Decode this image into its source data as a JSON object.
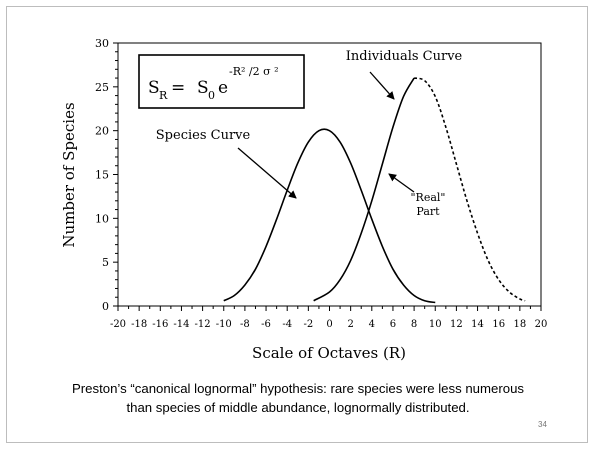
{
  "chart_data": {
    "type": "line",
    "title": "",
    "xlabel": "Scale of Octaves (R)",
    "ylabel": "Number of Species",
    "xlim": [
      -20,
      20
    ],
    "ylim": [
      0,
      30
    ],
    "xticks": [
      -20,
      -18,
      -16,
      -14,
      -12,
      -10,
      -8,
      -6,
      -4,
      -2,
      0,
      2,
      4,
      6,
      8,
      10,
      12,
      14,
      16,
      18,
      20
    ],
    "yticks": [
      0,
      5,
      10,
      15,
      20,
      25,
      30
    ],
    "grid": false,
    "series": [
      {
        "name": "Species Curve",
        "style": "solid",
        "x": [
          -10,
          -9,
          -8,
          -7,
          -6,
          -5,
          -4,
          -3,
          -2,
          -1,
          0,
          1,
          2,
          3,
          4,
          5,
          6,
          7,
          8,
          9,
          10
        ],
        "y": [
          0.6,
          1.2,
          2.4,
          4.2,
          6.8,
          9.9,
          13.2,
          16.3,
          18.7,
          20.0,
          20.0,
          18.7,
          16.3,
          13.2,
          9.9,
          6.8,
          4.2,
          2.4,
          1.2,
          0.6,
          0.4
        ]
      },
      {
        "name": "Individuals Curve",
        "style": "solid",
        "x": [
          -1.5,
          0,
          1,
          2,
          3,
          4,
          5,
          6,
          7,
          8
        ],
        "y": [
          0.6,
          1.6,
          3.0,
          5.2,
          8.3,
          12.0,
          16.2,
          20.4,
          23.9,
          26.0
        ]
      },
      {
        "name": "\"Real\" Part",
        "style": "dashed",
        "x": [
          8,
          9,
          10,
          11,
          12,
          13,
          14,
          15,
          16,
          17,
          18,
          18.5
        ],
        "y": [
          26.0,
          25.7,
          23.9,
          20.4,
          16.2,
          12.0,
          8.3,
          5.2,
          3.0,
          1.6,
          0.8,
          0.6
        ]
      }
    ],
    "annotations": {
      "species_curve": "Species Curve",
      "individuals_curve": "Individuals Curve",
      "real_line1": "\"Real\"",
      "real_line2": "Part"
    },
    "formula": {
      "lhs": "S",
      "lhs_sub": "R",
      "eq": "=",
      "rhs": "S",
      "rhs_sub": "0",
      "base": "e",
      "exponent": "-R² /2 σ ²"
    }
  },
  "caption": {
    "line1": "Preston’s “canonical lognormal” hypothesis: rare species were less numerous",
    "line2": "than species of middle abundance, lognormally distributed."
  },
  "slide_number": "34"
}
